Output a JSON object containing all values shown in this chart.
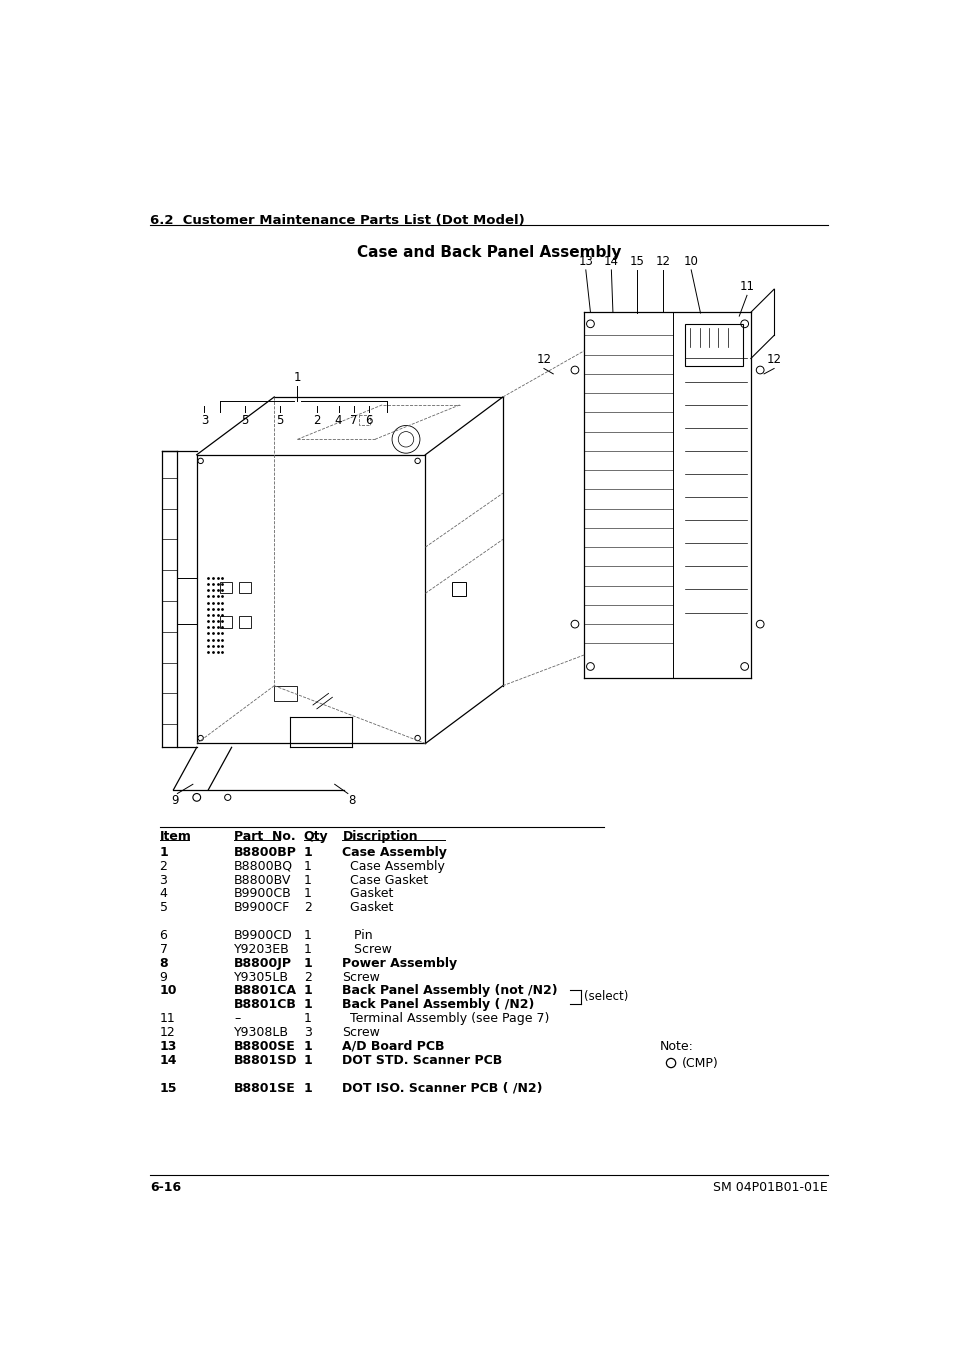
{
  "page_bg": "#ffffff",
  "section_header": "6.2  Customer Maintenance Parts List (Dot Model)",
  "title": "Case and Back Panel Assembly",
  "footer_left": "6-16",
  "footer_right": "SM 04P01B01-01E",
  "table_headers": [
    "Item",
    "Part  No.",
    "Qty",
    "Discription"
  ],
  "table_rows": [
    [
      "1",
      "B8800BP",
      "1",
      "Case Assembly"
    ],
    [
      "2",
      "B8800BQ",
      "1",
      "  Case Assembly"
    ],
    [
      "3",
      "B8800BV",
      "1",
      "  Case Gasket"
    ],
    [
      "4",
      "B9900CB",
      "1",
      "  Gasket"
    ],
    [
      "5",
      "B9900CF",
      "2",
      "  Gasket"
    ],
    [
      "",
      "",
      "",
      ""
    ],
    [
      "6",
      "B9900CD",
      "1",
      "   Pin"
    ],
    [
      "7",
      "Y9203EB",
      "1",
      "   Screw"
    ],
    [
      "8",
      "B8800JP",
      "1",
      "Power Assembly"
    ],
    [
      "9",
      "Y9305LB",
      "2",
      "Screw"
    ],
    [
      "10",
      "B8801CA",
      "1",
      "Back Panel Assembly (not /N2)"
    ],
    [
      "",
      "B8801CB",
      "1",
      "Back Panel Assembly ( /N2)"
    ],
    [
      "11",
      "–",
      "1",
      "  Terminal Assembly (see Page 7)"
    ],
    [
      "12",
      "Y9308LB",
      "3",
      "Screw"
    ],
    [
      "13",
      "B8800SE",
      "1",
      "A/D Board PCB"
    ],
    [
      "14",
      "B8801SD",
      "1",
      "DOT STD. Scanner PCB"
    ],
    [
      "",
      "",
      "",
      ""
    ],
    [
      "15",
      "B8801SE",
      "1",
      "DOT ISO. Scanner PCB ( /N2)"
    ]
  ],
  "select_label": "(select)",
  "note_label": "Note:",
  "note_text": "(CMP)"
}
